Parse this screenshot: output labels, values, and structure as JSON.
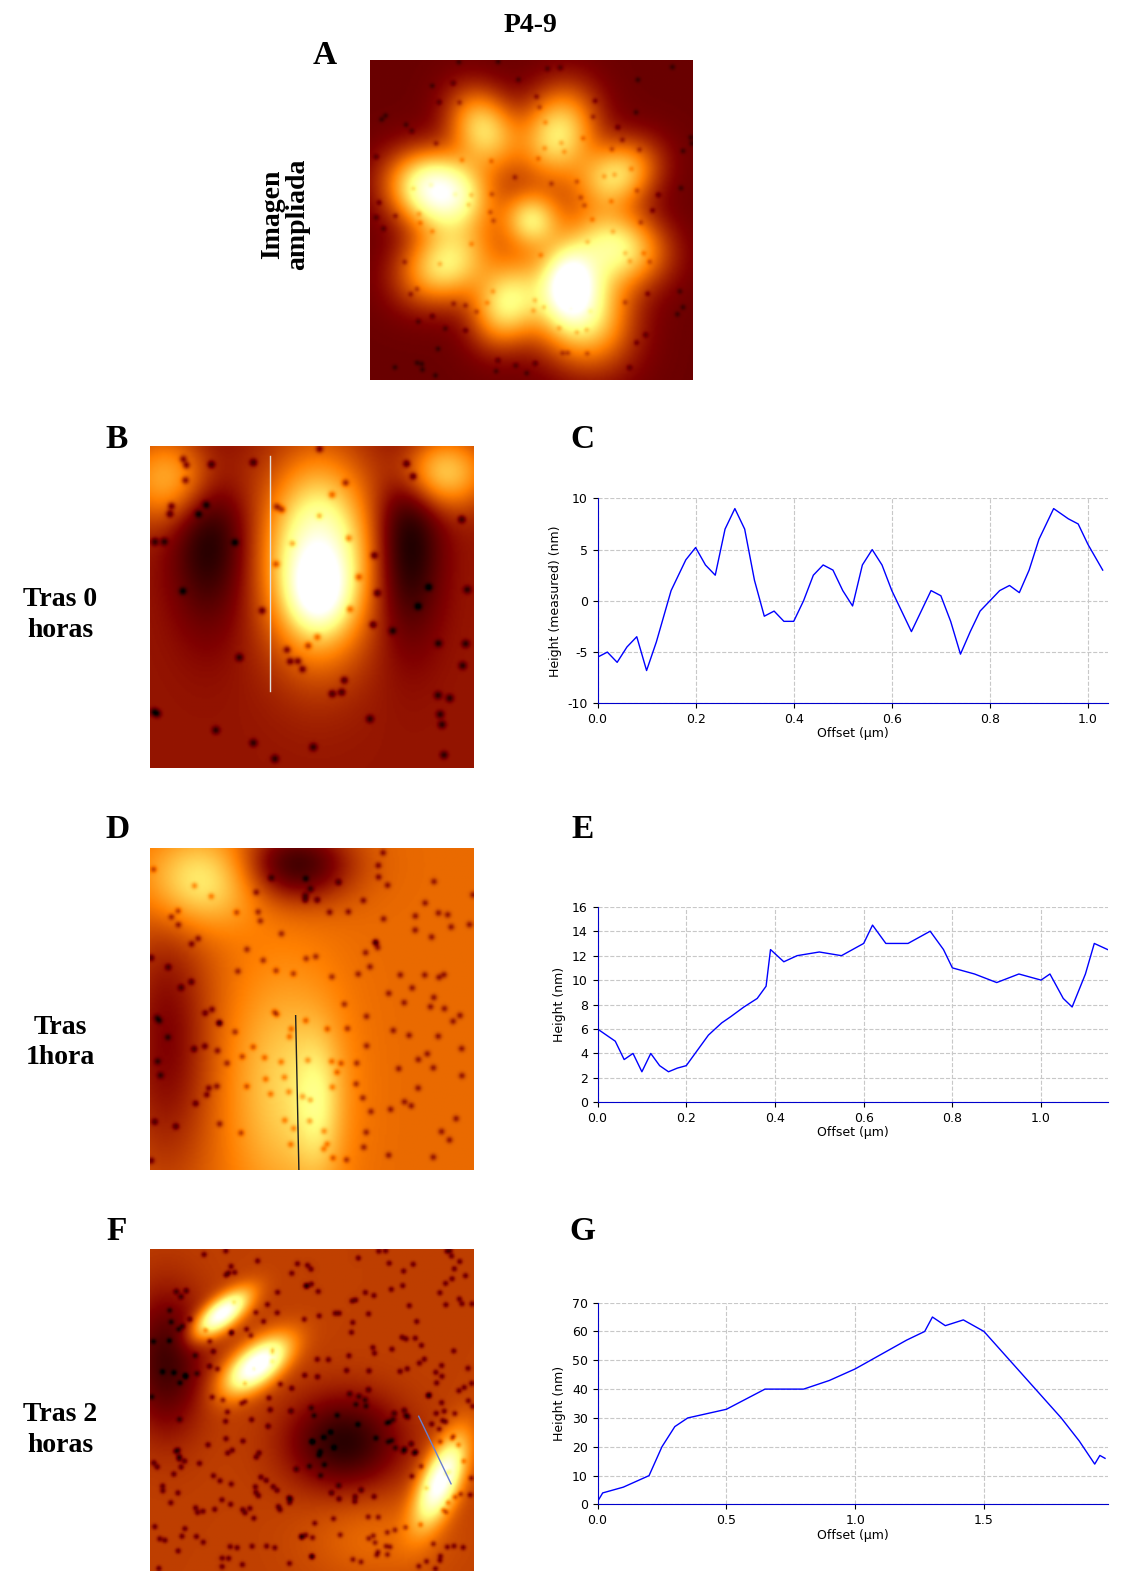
{
  "figure": {
    "title": "P4-9",
    "rows": [
      {
        "image_letter": "A",
        "label": "Imagen\nampliada"
      },
      {
        "image_letter": "B",
        "label": "Tras 0\nhoras",
        "chart_letter": "C"
      },
      {
        "image_letter": "D",
        "label": "Tras\n1hora",
        "chart_letter": "E"
      },
      {
        "image_letter": "F",
        "label": "Tras 2\nhoras",
        "chart_letter": "G"
      }
    ]
  },
  "chart_data": [
    {
      "type": "line",
      "x_label": "Offset (µm)",
      "y_label": "Height (measured) (nm)",
      "color": "#0000ff",
      "grid": true,
      "x": [
        0,
        0.02,
        0.04,
        0.06,
        0.08,
        0.1,
        0.12,
        0.15,
        0.18,
        0.2,
        0.22,
        0.24,
        0.26,
        0.28,
        0.3,
        0.32,
        0.34,
        0.36,
        0.38,
        0.4,
        0.42,
        0.44,
        0.46,
        0.48,
        0.5,
        0.52,
        0.54,
        0.56,
        0.58,
        0.6,
        0.62,
        0.64,
        0.66,
        0.68,
        0.7,
        0.72,
        0.74,
        0.76,
        0.78,
        0.8,
        0.82,
        0.84,
        0.86,
        0.88,
        0.9,
        0.93,
        0.96,
        0.98,
        1.0,
        1.03
      ],
      "values": [
        -5.5,
        -5,
        -6,
        -4.5,
        -3.5,
        -6.8,
        -4,
        1,
        4,
        5.2,
        3.5,
        2.5,
        7,
        9,
        7,
        2,
        -1.5,
        -1,
        -2,
        -2,
        0,
        2.5,
        3.5,
        3,
        1,
        -0.5,
        3.5,
        5,
        3.5,
        1,
        -1,
        -3,
        -1,
        1,
        0.5,
        -2,
        -5.2,
        -3,
        -1,
        0,
        1,
        1.5,
        0.8,
        3,
        6,
        9,
        8,
        7.5,
        5.5,
        3
      ],
      "xlim": [
        0,
        1.04
      ],
      "ylim": [
        -10,
        10
      ],
      "xticks": [
        {
          "value": 0,
          "label": "0.0"
        },
        0.2,
        0.4,
        0.6,
        0.8,
        {
          "value": 1,
          "label": "1.0"
        }
      ],
      "yticks": [
        -10,
        -5,
        0,
        5,
        10
      ]
    },
    {
      "type": "line",
      "x_label": "Offset (µm)",
      "y_label": "Height (nm)",
      "color": "#0000ff",
      "grid": true,
      "x": [
        0,
        0.02,
        0.04,
        0.06,
        0.08,
        0.1,
        0.12,
        0.14,
        0.16,
        0.18,
        0.2,
        0.22,
        0.25,
        0.28,
        0.3,
        0.33,
        0.36,
        0.38,
        0.39,
        0.42,
        0.45,
        0.5,
        0.55,
        0.6,
        0.62,
        0.65,
        0.7,
        0.75,
        0.78,
        0.8,
        0.85,
        0.9,
        0.95,
        1.0,
        1.02,
        1.05,
        1.07,
        1.1,
        1.12,
        1.15
      ],
      "values": [
        6,
        5.5,
        5,
        3.5,
        4,
        2.5,
        4,
        3,
        2.5,
        2.8,
        3,
        4,
        5.5,
        6.5,
        7,
        7.8,
        8.5,
        9.5,
        12.5,
        11.5,
        12,
        12.3,
        12,
        13,
        14.5,
        13,
        13,
        14,
        12.5,
        11,
        10.5,
        9.8,
        10.5,
        10,
        10.5,
        8.5,
        7.8,
        10.5,
        13,
        12.5
      ],
      "xlim": [
        0,
        1.15
      ],
      "ylim": [
        0,
        16
      ],
      "xticks": [
        {
          "value": 0,
          "label": "0.0"
        },
        0.2,
        0.4,
        0.6,
        0.8,
        {
          "value": 1,
          "label": "1.0"
        }
      ],
      "yticks": [
        0,
        2,
        4,
        6,
        8,
        10,
        12,
        14,
        16
      ]
    },
    {
      "type": "line",
      "x_label": "Offset (µm)",
      "y_label": "Height (nm)",
      "color": "#0000ff",
      "grid": true,
      "x": [
        0,
        0.02,
        0.1,
        0.2,
        0.25,
        0.3,
        0.35,
        0.5,
        0.65,
        0.8,
        0.9,
        1.0,
        1.1,
        1.2,
        1.27,
        1.3,
        1.35,
        1.42,
        1.5,
        1.6,
        1.7,
        1.8,
        1.87,
        1.93,
        1.95,
        1.97
      ],
      "values": [
        1,
        4,
        6,
        10,
        20,
        27,
        30,
        33,
        40,
        40,
        43,
        47,
        52,
        57,
        60,
        65,
        62,
        64,
        60,
        50,
        40,
        30,
        22,
        14,
        17,
        16
      ],
      "xlim": [
        0,
        1.98
      ],
      "ylim": [
        0,
        70
      ],
      "xticks": [
        {
          "value": 0,
          "label": "0.0"
        },
        0.5,
        {
          "value": 1,
          "label": "1.0"
        },
        1.5
      ],
      "yticks": [
        0,
        10,
        20,
        30,
        40,
        50,
        60,
        70
      ]
    }
  ]
}
